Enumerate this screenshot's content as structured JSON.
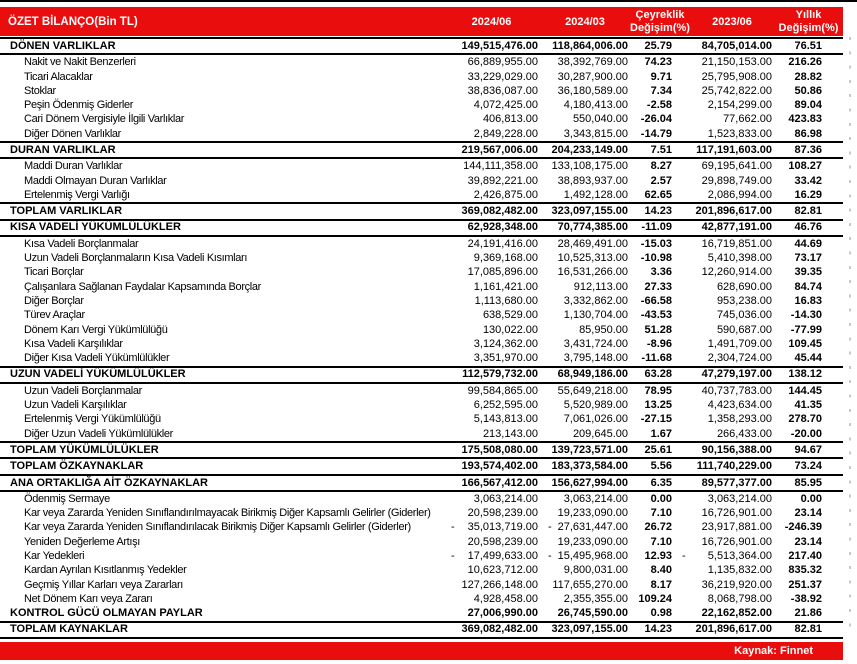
{
  "colors": {
    "accent_red": "#E90D0D",
    "rule_black": "#000000",
    "tick_gray": "#C9C9C9"
  },
  "table": {
    "header": {
      "title": "ÖZET BİLANÇO(Bin TL)",
      "c1": "2024/06",
      "c2": "2024/03",
      "c3_line1": "Çeyreklik",
      "c3_line2": "Değişim(%)",
      "c4": "2023/06",
      "c5_line1": "Yıllık",
      "c5_line2": "Değişim(%)"
    },
    "rows": [
      {
        "label": "DÖNEN VARLIKLAR",
        "section": true,
        "top": true,
        "v": [
          "149,515,476.00",
          "118,864,006.00",
          "25.79",
          "84,705,014.00",
          "76.51"
        ]
      },
      {
        "label": "Nakit ve Nakit Benzerleri",
        "v": [
          "66,889,955.00",
          "38,392,769.00",
          "74.23",
          "21,150,153.00",
          "216.26"
        ]
      },
      {
        "label": "Ticari Alacaklar",
        "v": [
          "33,229,029.00",
          "30,287,900.00",
          "9.71",
          "25,795,908.00",
          "28.82"
        ]
      },
      {
        "label": "Stoklar",
        "v": [
          "38,836,087.00",
          "36,180,589.00",
          "7.34",
          "25,742,822.00",
          "50.86"
        ]
      },
      {
        "label": "Peşin Ödenmiş Giderler",
        "v": [
          "4,072,425.00",
          "4,180,413.00",
          "-2.58",
          "2,154,299.00",
          "89.04"
        ]
      },
      {
        "label": "Cari Dönem Vergisiyle İlgili Varlıklar",
        "v": [
          "406,813.00",
          "550,040.00",
          "-26.04",
          "77,662.00",
          "423.83"
        ]
      },
      {
        "label": "Diğer Dönen Varlıklar",
        "v": [
          "2,849,228.00",
          "3,343,815.00",
          "-14.79",
          "1,523,833.00",
          "86.98"
        ]
      },
      {
        "label": "DURAN VARLIKLAR",
        "section": true,
        "top": true,
        "v": [
          "219,567,006.00",
          "204,233,149.00",
          "7.51",
          "117,191,603.00",
          "87.36"
        ]
      },
      {
        "label": "Maddi Duran Varlıklar",
        "v": [
          "144,111,358.00",
          "133,108,175.00",
          "8.27",
          "69,195,641.00",
          "108.27"
        ]
      },
      {
        "label": "Maddi Olmayan Duran Varlıklar",
        "v": [
          "39,892,221.00",
          "38,893,937.00",
          "2.57",
          "29,898,749.00",
          "33.42"
        ]
      },
      {
        "label": "Ertelenmiş Vergi Varlığı",
        "v": [
          "2,426,875.00",
          "1,492,128.00",
          "62.65",
          "2,086,994.00",
          "16.29"
        ]
      },
      {
        "label": "TOPLAM VARLIKLAR",
        "section": true,
        "top": true,
        "v": [
          "369,082,482.00",
          "323,097,155.00",
          "14.23",
          "201,896,617.00",
          "82.81"
        ]
      },
      {
        "label": "KISA VADELİ YÜKÜMLÜLÜKLER",
        "section": true,
        "v": [
          "62,928,348.00",
          "70,774,385.00",
          "-11.09",
          "42,877,191.00",
          "46.76"
        ]
      },
      {
        "label": "Kısa Vadeli Borçlanmalar",
        "v": [
          "24,191,416.00",
          "28,469,491.00",
          "-15.03",
          "16,719,851.00",
          "44.69"
        ]
      },
      {
        "label": "Uzun Vadeli Borçlanmaların Kısa Vadeli Kısımları",
        "v": [
          "9,369,168.00",
          "10,525,313.00",
          "-10.98",
          "5,410,398.00",
          "73.17"
        ]
      },
      {
        "label": "Ticari Borçlar",
        "v": [
          "17,085,896.00",
          "16,531,266.00",
          "3.36",
          "12,260,914.00",
          "39.35"
        ]
      },
      {
        "label": "Çalışanlara Sağlanan Faydalar Kapsamında Borçlar",
        "v": [
          "1,161,421.00",
          "912,113.00",
          "27.33",
          "628,690.00",
          "84.74"
        ]
      },
      {
        "label": "Diğer Borçlar",
        "v": [
          "1,113,680.00",
          "3,332,862.00",
          "-66.58",
          "953,238.00",
          "16.83"
        ]
      },
      {
        "label": "Türev Araçlar",
        "v": [
          "638,529.00",
          "1,130,704.00",
          "-43.53",
          "745,036.00",
          "-14.30"
        ]
      },
      {
        "label": "Dönem Karı Vergi Yükümlülüğü",
        "v": [
          "130,022.00",
          "85,950.00",
          "51.28",
          "590,687.00",
          "-77.99"
        ]
      },
      {
        "label": "Kısa Vadeli Karşılıklar",
        "v": [
          "3,124,362.00",
          "3,431,724.00",
          "-8.96",
          "1,491,709.00",
          "109.45"
        ]
      },
      {
        "label": "Diğer Kısa Vadeli Yükümlülükler",
        "v": [
          "3,351,970.00",
          "3,795,148.00",
          "-11.68",
          "2,304,724.00",
          "45.44"
        ]
      },
      {
        "label": "UZUN VADELİ YÜKÜMLÜLÜKLER",
        "section": true,
        "top": true,
        "v": [
          "112,579,732.00",
          "68,949,186.00",
          "63.28",
          "47,279,197.00",
          "138.12"
        ]
      },
      {
        "label": "Uzun Vadeli Borçlanmalar",
        "v": [
          "99,584,865.00",
          "55,649,218.00",
          "78.95",
          "40,737,783.00",
          "144.45"
        ]
      },
      {
        "label": "Uzun Vadeli Karşılıklar",
        "v": [
          "6,252,595.00",
          "5,520,989.00",
          "13.25",
          "4,423,634.00",
          "41.35"
        ]
      },
      {
        "label": "Ertelenmiş Vergi Yükümlülüğü",
        "v": [
          "5,143,813.00",
          "7,061,026.00",
          "-27.15",
          "1,358,293.00",
          "278.70"
        ]
      },
      {
        "label": "Diğer Uzun Vadeli Yükümlülükler",
        "v": [
          "213,143.00",
          "209,645.00",
          "1.67",
          "266,433.00",
          "-20.00"
        ]
      },
      {
        "label": "TOPLAM YÜKÜMLÜLÜKLER",
        "section": true,
        "top": true,
        "v": [
          "175,508,080.00",
          "139,723,571.00",
          "25.61",
          "90,156,388.00",
          "94.67"
        ]
      },
      {
        "label": "TOPLAM ÖZKAYNAKLAR",
        "section": true,
        "v": [
          "193,574,402.00",
          "183,373,584.00",
          "5.56",
          "111,740,229.00",
          "73.24"
        ]
      },
      {
        "label": "ANA ORTAKLIĞA AİT ÖZKAYNAKLAR",
        "section": true,
        "v": [
          "166,567,412.00",
          "156,627,994.00",
          "6.35",
          "89,577,377.00",
          "85.95"
        ]
      },
      {
        "label": "Ödenmiş Sermaye",
        "v": [
          "3,063,214.00",
          "3,063,214.00",
          "0.00",
          "3,063,214.00",
          "0.00"
        ]
      },
      {
        "label": "Kar veya Zararda Yeniden Sınıflandırılmayacak Birikmiş Diğer Kapsamlı Gelirler (Giderler)",
        "v": [
          "20,598,239.00",
          "19,233,090.00",
          "7.10",
          "16,726,901.00",
          "23.14"
        ]
      },
      {
        "label": "Kar veya Zararda Yeniden Sınıflandırılacak Birikmiş Diğer Kapsamlı Gelirler (Giderler)",
        "v": [
          "35,013,719.00",
          "27,631,447.00",
          "26.72",
          "23,917,881.00",
          "-246.39"
        ],
        "neg": [
          1,
          1,
          0
        ]
      },
      {
        "label": "Yeniden Değerleme Artışı",
        "v": [
          "20,598,239.00",
          "19,233,090.00",
          "7.10",
          "16,726,901.00",
          "23.14"
        ]
      },
      {
        "label": "Kar Yedekleri",
        "v": [
          "17,499,633.00",
          "15,495,968.00",
          "12.93",
          "5,513,364.00",
          "217.40"
        ],
        "neg": [
          1,
          1,
          1
        ]
      },
      {
        "label": "Kardan Ayrılan Kısıtlanmış Yedekler",
        "v": [
          "10,623,712.00",
          "9,800,031.00",
          "8.40",
          "1,135,832.00",
          "835.32"
        ]
      },
      {
        "label": "Geçmiş Yıllar Karları veya Zararları",
        "v": [
          "127,266,148.00",
          "117,655,270.00",
          "8.17",
          "36,219,920.00",
          "251.37"
        ]
      },
      {
        "label": "Net Dönem Karı veya Zararı",
        "v": [
          "4,928,458.00",
          "2,355,355.00",
          "109.24",
          "8,068,798.00",
          "-38.92"
        ]
      },
      {
        "label": "KONTROL GÜCÜ OLMAYAN PAYLAR",
        "section": true,
        "v": [
          "27,006,990.00",
          "26,745,590.00",
          "0.98",
          "22,162,852.00",
          "21.86"
        ]
      },
      {
        "label": "TOPLAM KAYNAKLAR",
        "section": true,
        "v": [
          "369,082,482.00",
          "323,097,155.00",
          "14.23",
          "201,896,617.00",
          "82.81"
        ]
      }
    ]
  },
  "footer": {
    "source": "Kaynak: Finnet"
  },
  "chart_data": {
    "type": "table",
    "title": "ÖZET BİLANÇO(Bin TL)",
    "columns": [
      "ÖZET BİLANÇO(Bin TL)",
      "2024/06",
      "2024/03",
      "Çeyreklik Değişim(%)",
      "2023/06",
      "Yıllık Değişim(%)"
    ],
    "rows": [
      [
        "DÖNEN VARLIKLAR",
        149515476.0,
        118864006.0,
        25.79,
        84705014.0,
        76.51
      ],
      [
        "Nakit ve Nakit Benzerleri",
        66889955.0,
        38392769.0,
        74.23,
        21150153.0,
        216.26
      ],
      [
        "Ticari Alacaklar",
        33229029.0,
        30287900.0,
        9.71,
        25795908.0,
        28.82
      ],
      [
        "Stoklar",
        38836087.0,
        36180589.0,
        7.34,
        25742822.0,
        50.86
      ],
      [
        "Peşin Ödenmiş Giderler",
        4072425.0,
        4180413.0,
        -2.58,
        2154299.0,
        89.04
      ],
      [
        "Cari Dönem Vergisiyle İlgili Varlıklar",
        406813.0,
        550040.0,
        -26.04,
        77662.0,
        423.83
      ],
      [
        "Diğer Dönen Varlıklar",
        2849228.0,
        3343815.0,
        -14.79,
        1523833.0,
        86.98
      ],
      [
        "DURAN VARLIKLAR",
        219567006.0,
        204233149.0,
        7.51,
        117191603.0,
        87.36
      ],
      [
        "Maddi Duran Varlıklar",
        144111358.0,
        133108175.0,
        8.27,
        69195641.0,
        108.27
      ],
      [
        "Maddi Olmayan Duran Varlıklar",
        39892221.0,
        38893937.0,
        2.57,
        29898749.0,
        33.42
      ],
      [
        "Ertelenmiş Vergi Varlığı",
        2426875.0,
        1492128.0,
        62.65,
        2086994.0,
        16.29
      ],
      [
        "TOPLAM VARLIKLAR",
        369082482.0,
        323097155.0,
        14.23,
        201896617.0,
        82.81
      ],
      [
        "KISA VADELİ YÜKÜMLÜLÜKLER",
        62928348.0,
        70774385.0,
        -11.09,
        42877191.0,
        46.76
      ],
      [
        "Kısa Vadeli Borçlanmalar",
        24191416.0,
        28469491.0,
        -15.03,
        16719851.0,
        44.69
      ],
      [
        "Uzun Vadeli Borçlanmaların Kısa Vadeli Kısımları",
        9369168.0,
        10525313.0,
        -10.98,
        5410398.0,
        73.17
      ],
      [
        "Ticari Borçlar",
        17085896.0,
        16531266.0,
        3.36,
        12260914.0,
        39.35
      ],
      [
        "Çalışanlara Sağlanan Faydalar Kapsamında Borçlar",
        1161421.0,
        912113.0,
        27.33,
        628690.0,
        84.74
      ],
      [
        "Diğer Borçlar",
        1113680.0,
        3332862.0,
        -66.58,
        953238.0,
        16.83
      ],
      [
        "Türev Araçlar",
        638529.0,
        1130704.0,
        -43.53,
        745036.0,
        -14.3
      ],
      [
        "Dönem Karı Vergi Yükümlülüğü",
        130022.0,
        85950.0,
        51.28,
        590687.0,
        -77.99
      ],
      [
        "Kısa Vadeli Karşılıklar",
        3124362.0,
        3431724.0,
        -8.96,
        1491709.0,
        109.45
      ],
      [
        "Diğer Kısa Vadeli Yükümlülükler",
        3351970.0,
        3795148.0,
        -11.68,
        2304724.0,
        45.44
      ],
      [
        "UZUN VADELİ YÜKÜMLÜLÜKLER",
        112579732.0,
        68949186.0,
        63.28,
        47279197.0,
        138.12
      ],
      [
        "Uzun Vadeli Borçlanmalar",
        99584865.0,
        55649218.0,
        78.95,
        40737783.0,
        144.45
      ],
      [
        "Uzun Vadeli Karşılıklar",
        6252595.0,
        5520989.0,
        13.25,
        4423634.0,
        41.35
      ],
      [
        "Ertelenmiş Vergi Yükümlülüğü",
        5143813.0,
        7061026.0,
        -27.15,
        1358293.0,
        278.7
      ],
      [
        "Diğer Uzun Vadeli Yükümlülükler",
        213143.0,
        209645.0,
        1.67,
        266433.0,
        -20.0
      ],
      [
        "TOPLAM YÜKÜMLÜLÜKLER",
        175508080.0,
        139723571.0,
        25.61,
        90156388.0,
        94.67
      ],
      [
        "TOPLAM ÖZKAYNAKLAR",
        193574402.0,
        183373584.0,
        5.56,
        111740229.0,
        73.24
      ],
      [
        "ANA ORTAKLIĞA AİT ÖZKAYNAKLAR",
        166567412.0,
        156627994.0,
        6.35,
        89577377.0,
        85.95
      ],
      [
        "Ödenmiş Sermaye",
        3063214.0,
        3063214.0,
        0.0,
        3063214.0,
        0.0
      ],
      [
        "Kar veya Zararda Yeniden Sınıflandırılmayacak Birikmiş Diğer Kapsamlı Gelirler (Giderler)",
        20598239.0,
        19233090.0,
        7.1,
        16726901.0,
        23.14
      ],
      [
        "Kar veya Zararda Yeniden Sınıflandırılacak Birikmiş Diğer Kapsamlı Gelirler (Giderler)",
        -35013719.0,
        -27631447.0,
        26.72,
        23917881.0,
        -246.39
      ],
      [
        "Yeniden Değerleme Artışı",
        20598239.0,
        19233090.0,
        7.1,
        16726901.0,
        23.14
      ],
      [
        "Kar Yedekleri",
        -17499633.0,
        -15495968.0,
        12.93,
        -5513364.0,
        217.4
      ],
      [
        "Kardan Ayrılan Kısıtlanmış Yedekler",
        10623712.0,
        9800031.0,
        8.4,
        1135832.0,
        835.32
      ],
      [
        "Geçmiş Yıllar Karları veya Zararları",
        127266148.0,
        117655270.0,
        8.17,
        36219920.0,
        251.37
      ],
      [
        "Net Dönem Karı veya Zararı",
        4928458.0,
        2355355.0,
        109.24,
        8068798.0,
        -38.92
      ],
      [
        "KONTROL GÜCÜ OLMAYAN PAYLAR",
        27006990.0,
        26745590.0,
        0.98,
        22162852.0,
        21.86
      ],
      [
        "TOPLAM KAYNAKLAR",
        369082482.0,
        323097155.0,
        14.23,
        201896617.0,
        82.81
      ]
    ]
  }
}
